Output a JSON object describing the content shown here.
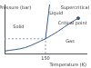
{
  "chart_data": {
    "type": "line",
    "x_label": "Temperature (K)",
    "xlim": [
      100,
      200
    ],
    "xticks": [
      150
    ],
    "ylim": [
      0,
      100
    ],
    "grid": false,
    "tick_labels": "x",
    "series": [
      {
        "x": [
          100,
          125,
          150
        ],
        "values": [
          5,
          12,
          30
        ],
        "color": "#3d5a80",
        "line_style": "solid"
      },
      {
        "x": [
          150,
          155
        ],
        "values": [
          30,
          100
        ],
        "color": "#3d5a80",
        "line_style": "solid"
      },
      {
        "x": [
          150,
          165,
          180,
          190
        ],
        "values": [
          30,
          45,
          62,
          72
        ],
        "color": "#3d5a80",
        "line_style": "solid"
      },
      {
        "x": [
          150,
          150
        ],
        "values": [
          0,
          30
        ],
        "color": "#8a9bb0",
        "line_style": "dashed"
      },
      {
        "x": [
          100,
          150
        ],
        "values": [
          30,
          30
        ],
        "color": "#8a9bb0",
        "line_style": "dashed"
      },
      {
        "x": [
          190
        ],
        "values": [
          72
        ],
        "color": "#3d5a80",
        "marker": "circle",
        "type": "scatter"
      }
    ],
    "annotations": [
      {
        "text": "Pressure (bar)",
        "x": 113,
        "y": 93
      },
      {
        "text": "Liquid",
        "x": 163,
        "y": 82
      },
      {
        "text": "Supercritical",
        "x": 186,
        "y": 94
      },
      {
        "text": "Solid",
        "x": 117,
        "y": 55
      },
      {
        "text": "Critical point",
        "x": 183,
        "y": 62
      },
      {
        "text": "Gas",
        "x": 180,
        "y": 25
      }
    ]
  }
}
